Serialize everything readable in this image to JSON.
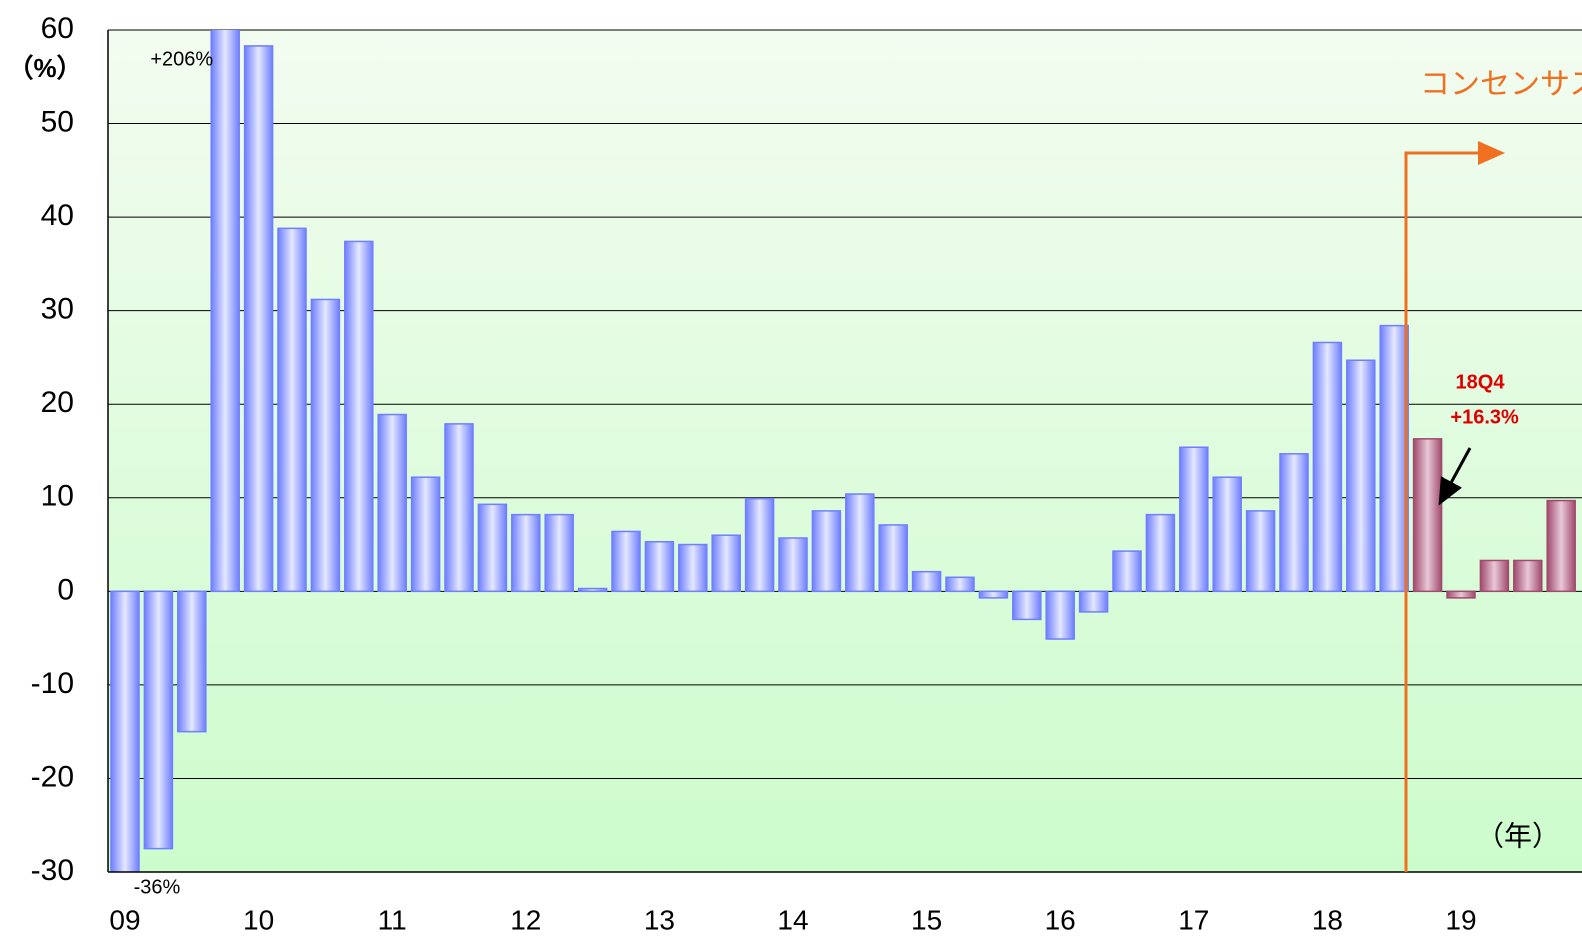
{
  "chart_data": {
    "type": "bar",
    "y_unit": "（%）",
    "x_unit": "（年）",
    "annotation": "コンセンサス予想",
    "highlight_label": "18Q4",
    "categories": [
      "09",
      null,
      null,
      null,
      "10",
      null,
      null,
      null,
      "11",
      null,
      null,
      null,
      "12",
      null,
      null,
      null,
      "13",
      null,
      null,
      null,
      "14",
      null,
      null,
      null,
      "15",
      null,
      null,
      null,
      "16",
      null,
      null,
      null,
      "17",
      null,
      null,
      null,
      "18",
      null,
      null,
      null,
      "19",
      null,
      null,
      null
    ],
    "series": [
      {
        "color": "#6f7fff",
        "values": [
          -36,
          -27.5,
          -15,
          206,
          58.3,
          38.8,
          31.2,
          37.4,
          18.9,
          12.2,
          17.9,
          9.3,
          8.2,
          8.2,
          0.3,
          6.4,
          5.3,
          5.0,
          6.0,
          9.9,
          5.7,
          8.6,
          10.4,
          7.1,
          2.1,
          1.5,
          -0.7,
          -3.0,
          -5.1,
          -2.2,
          4.3,
          8.2,
          15.4,
          12.2,
          8.6,
          14.7,
          26.6,
          24.7,
          28.4,
          null,
          null,
          null,
          null,
          null
        ],
        "value_labels": [
          "-36%",
          null,
          null,
          "+206%",
          null,
          null,
          null,
          null,
          null,
          null,
          null,
          null,
          null,
          null,
          null,
          null,
          null,
          null,
          null,
          null,
          null,
          null,
          null,
          null,
          null,
          null,
          null,
          null,
          null,
          null,
          null,
          null,
          null,
          null,
          null,
          null,
          null,
          null,
          null,
          null,
          null,
          null,
          null,
          null
        ]
      },
      {
        "color": "#a04a6e",
        "values": [
          null,
          null,
          null,
          null,
          null,
          null,
          null,
          null,
          null,
          null,
          null,
          null,
          null,
          null,
          null,
          null,
          null,
          null,
          null,
          null,
          null,
          null,
          null,
          null,
          null,
          null,
          null,
          null,
          null,
          null,
          null,
          null,
          null,
          null,
          null,
          null,
          null,
          null,
          null,
          16.3,
          -0.7,
          3.3,
          3.3,
          9.7
        ],
        "value_labels": [
          null,
          null,
          null,
          null,
          null,
          null,
          null,
          null,
          null,
          null,
          null,
          null,
          null,
          null,
          null,
          null,
          null,
          null,
          null,
          null,
          null,
          null,
          null,
          null,
          null,
          null,
          null,
          null,
          null,
          null,
          null,
          null,
          null,
          null,
          null,
          null,
          null,
          null,
          null,
          "+16.3%",
          null,
          null,
          null,
          null
        ]
      }
    ],
    "ylim": [
      -30,
      60
    ],
    "yticks": [
      -30,
      -20,
      -10,
      0,
      10,
      20,
      30,
      40,
      50,
      60
    ],
    "grid": true
  }
}
